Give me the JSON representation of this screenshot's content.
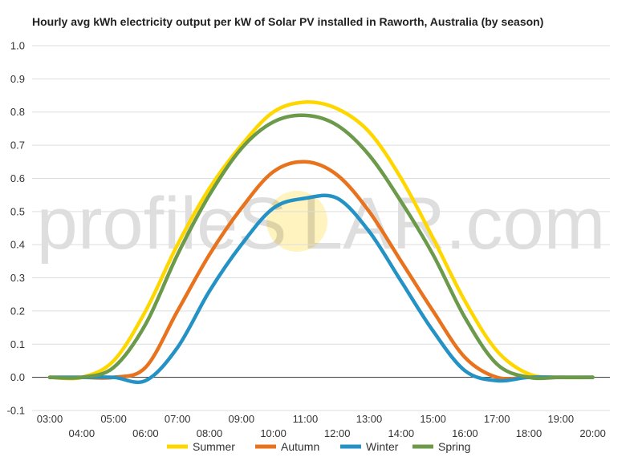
{
  "chart_data": {
    "type": "line",
    "title": "Hourly avg kWh electricity output per kW of Solar PV installed in Raworth, Australia (by season)",
    "xlabel": "",
    "ylabel": "",
    "x": [
      "03:00",
      "04:00",
      "05:00",
      "06:00",
      "07:00",
      "08:00",
      "09:00",
      "10:00",
      "11:00",
      "12:00",
      "13:00",
      "14:00",
      "15:00",
      "16:00",
      "17:00",
      "18:00",
      "19:00",
      "20:00"
    ],
    "x_ticks_top": [
      "03:00",
      "05:00",
      "07:00",
      "09:00",
      "11:00",
      "13:00",
      "15:00",
      "17:00",
      "19:00"
    ],
    "x_ticks_bottom": [
      "04:00",
      "06:00",
      "08:00",
      "10:00",
      "12:00",
      "14:00",
      "16:00",
      "18:00",
      "20:00"
    ],
    "y_ticks": [
      "1.0",
      "0.9",
      "0.8",
      "0.7",
      "0.6",
      "0.5",
      "0.4",
      "0.3",
      "0.2",
      "0.1",
      "0.0",
      "-0.1"
    ],
    "ylim": [
      -0.1,
      1.0
    ],
    "grid": true,
    "legend_position": "bottom",
    "series": [
      {
        "name": "Summer",
        "color": "#ffd700",
        "values": [
          0.0,
          0.0,
          0.05,
          0.2,
          0.4,
          0.57,
          0.7,
          0.8,
          0.83,
          0.81,
          0.74,
          0.6,
          0.42,
          0.23,
          0.08,
          0.01,
          0.0,
          0.0
        ]
      },
      {
        "name": "Autumn",
        "color": "#e8731e",
        "values": [
          0.0,
          0.0,
          0.0,
          0.03,
          0.2,
          0.37,
          0.51,
          0.62,
          0.65,
          0.61,
          0.5,
          0.35,
          0.2,
          0.06,
          0.0,
          0.0,
          0.0,
          0.0
        ]
      },
      {
        "name": "Winter",
        "color": "#2492c5",
        "values": [
          0.0,
          0.0,
          0.0,
          -0.01,
          0.09,
          0.26,
          0.4,
          0.51,
          0.54,
          0.54,
          0.44,
          0.29,
          0.14,
          0.02,
          -0.01,
          0.0,
          0.0,
          0.0
        ]
      },
      {
        "name": "Spring",
        "color": "#6b9a4b",
        "values": [
          0.0,
          0.0,
          0.03,
          0.16,
          0.37,
          0.55,
          0.69,
          0.77,
          0.79,
          0.76,
          0.67,
          0.53,
          0.37,
          0.18,
          0.04,
          0.0,
          0.0,
          0.0
        ]
      }
    ]
  },
  "watermark": {
    "text": "profileS LAR.com"
  }
}
